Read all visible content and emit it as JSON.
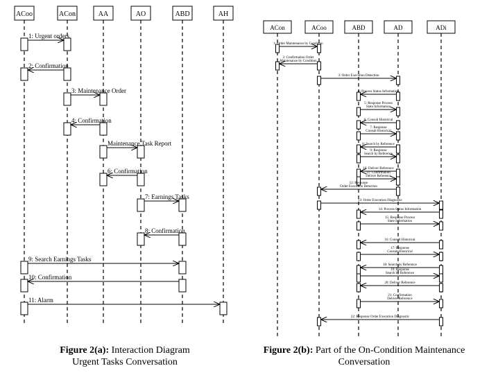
{
  "figure_a": {
    "lifelines": [
      "ACoo",
      "ACon",
      "AA",
      "AO",
      "ABD",
      "AH"
    ],
    "messages": [
      {
        "from": "ACoo",
        "to": "ACon",
        "label": "1: Urgent orders"
      },
      {
        "from": "ACon",
        "to": "ACoo",
        "label": "2: Confirmation"
      },
      {
        "from": "ACon",
        "to": "AA",
        "label": "3: Maintenance Order"
      },
      {
        "from": "AA",
        "to": "ACon",
        "label": "4: Confirmation"
      },
      {
        "from": "AA",
        "to": "AO",
        "label": "Maintenance Task Report"
      },
      {
        "from": "AO",
        "to": "AA",
        "label": "6: Confirmation"
      },
      {
        "from": "AO",
        "to": "ABD",
        "label": "7: Earnings Tasks"
      },
      {
        "from": "ABD",
        "to": "AO",
        "label": "8: Confirmation"
      },
      {
        "from": "ACoo",
        "to": "ABD",
        "label": "9: Search Earnings Tasks"
      },
      {
        "from": "ABD",
        "to": "ACoo",
        "label": "10: Confirmation"
      },
      {
        "from": "ACoo",
        "to": "AH",
        "label": "11: Alarm"
      }
    ],
    "caption_bold": "Figure 2(a):",
    "caption_rest": " Interaction Diagram",
    "caption_line2": "Urgent Tasks Conversation"
  },
  "figure_b": {
    "lifelines": [
      "ACon",
      "ACoo",
      "ABD",
      "AD",
      "ADi"
    ],
    "messages": [
      {
        "from": "ACon",
        "to": "ACoo",
        "label": "1: Order Maintenance by Condition"
      },
      {
        "from": "ACoo",
        "to": "ACon",
        "label": "2: Confirmation Order\nMaintenance by Condition"
      },
      {
        "from": "ACoo",
        "to": "AD",
        "label": "3: Order Execution Detection"
      },
      {
        "from": "AD",
        "to": "ABD",
        "label": "4: Process Status Information"
      },
      {
        "from": "ABD",
        "to": "AD",
        "label": "5: Response Process\nState Information"
      },
      {
        "from": "AD",
        "to": "ABD",
        "label": "6: Consult Historical"
      },
      {
        "from": "ABD",
        "to": "AD",
        "label": "7: Response\nConsult Historical"
      },
      {
        "from": "AD",
        "to": "ABD",
        "label": "8: Search by Reference"
      },
      {
        "from": "ABD",
        "to": "AD",
        "label": "9: Response\nSearch by Reference"
      },
      {
        "from": "AD",
        "to": "ABD",
        "label": "10: Deliver Reference"
      },
      {
        "from": "ABD",
        "to": "AD",
        "label": "11: Confirmation\nDeliver Reference"
      },
      {
        "from": "AD",
        "to": "ACoo",
        "label": "12: Response\nOrder Execution Detection"
      },
      {
        "from": "ACoo",
        "to": "ADi",
        "label": "13: Order Execution Diagnostic"
      },
      {
        "from": "ADi",
        "to": "ABD",
        "label": "14: Process Status Information"
      },
      {
        "from": "ABD",
        "to": "ADi",
        "label": "15: Response Process\nState Information"
      },
      {
        "from": "ADi",
        "to": "ABD",
        "label": "16: Consult Historical"
      },
      {
        "from": "ABD",
        "to": "ADi",
        "label": "17: Response\nConsult Historical"
      },
      {
        "from": "ADi",
        "to": "ABD",
        "label": "18: Search by Reference"
      },
      {
        "from": "ABD",
        "to": "ADi",
        "label": "19: Response\nSearch by Reference"
      },
      {
        "from": "ADi",
        "to": "ABD",
        "label": "20: Deliver Reference"
      },
      {
        "from": "ABD",
        "to": "ADi",
        "label": "21: Confirmation\nDeliver Reference"
      },
      {
        "from": "ADi",
        "to": "ACoo",
        "label": "22: Response Order Execution Diagnostic"
      }
    ],
    "caption_bold": "Figure 2(b):",
    "caption_rest": " Part of the On-Condition Maintenance",
    "caption_line2": "Conversation"
  }
}
